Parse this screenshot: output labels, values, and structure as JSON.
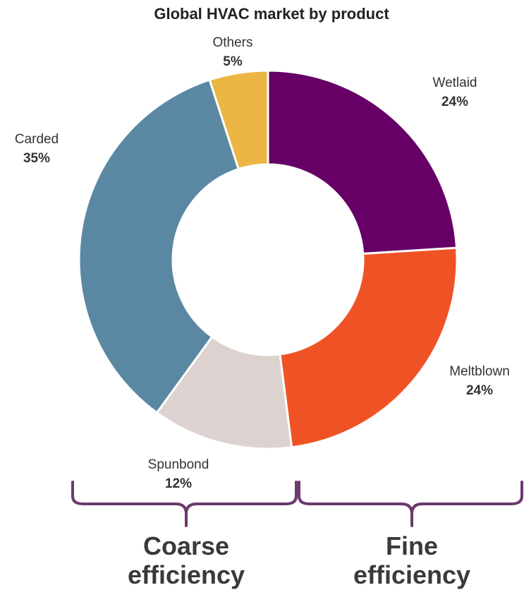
{
  "chart_data": {
    "type": "pie",
    "title": "Global HVAC market by product",
    "slices": [
      {
        "label": "Wetlaid",
        "value": 24,
        "display": "24%",
        "color": "#660066"
      },
      {
        "label": "Meltblown",
        "value": 24,
        "display": "24%",
        "color": "#ef5325"
      },
      {
        "label": "Spunbond",
        "value": 12,
        "display": "12%",
        "color": "#dcd3d1"
      },
      {
        "label": "Carded",
        "value": 35,
        "display": "35%",
        "color": "#5a88a2"
      },
      {
        "label": "Others",
        "value": 5,
        "display": "5%",
        "color": "#ebb643"
      }
    ],
    "donut": true,
    "groups": [
      {
        "label": [
          "Coarse",
          "efficiency"
        ],
        "members": [
          "Spunbond",
          "Carded",
          "Others"
        ]
      },
      {
        "label": [
          "Fine",
          "efficiency"
        ],
        "members": [
          "Wetlaid",
          "Meltblown"
        ]
      }
    ],
    "bracket_color": "#6b3a6e"
  }
}
